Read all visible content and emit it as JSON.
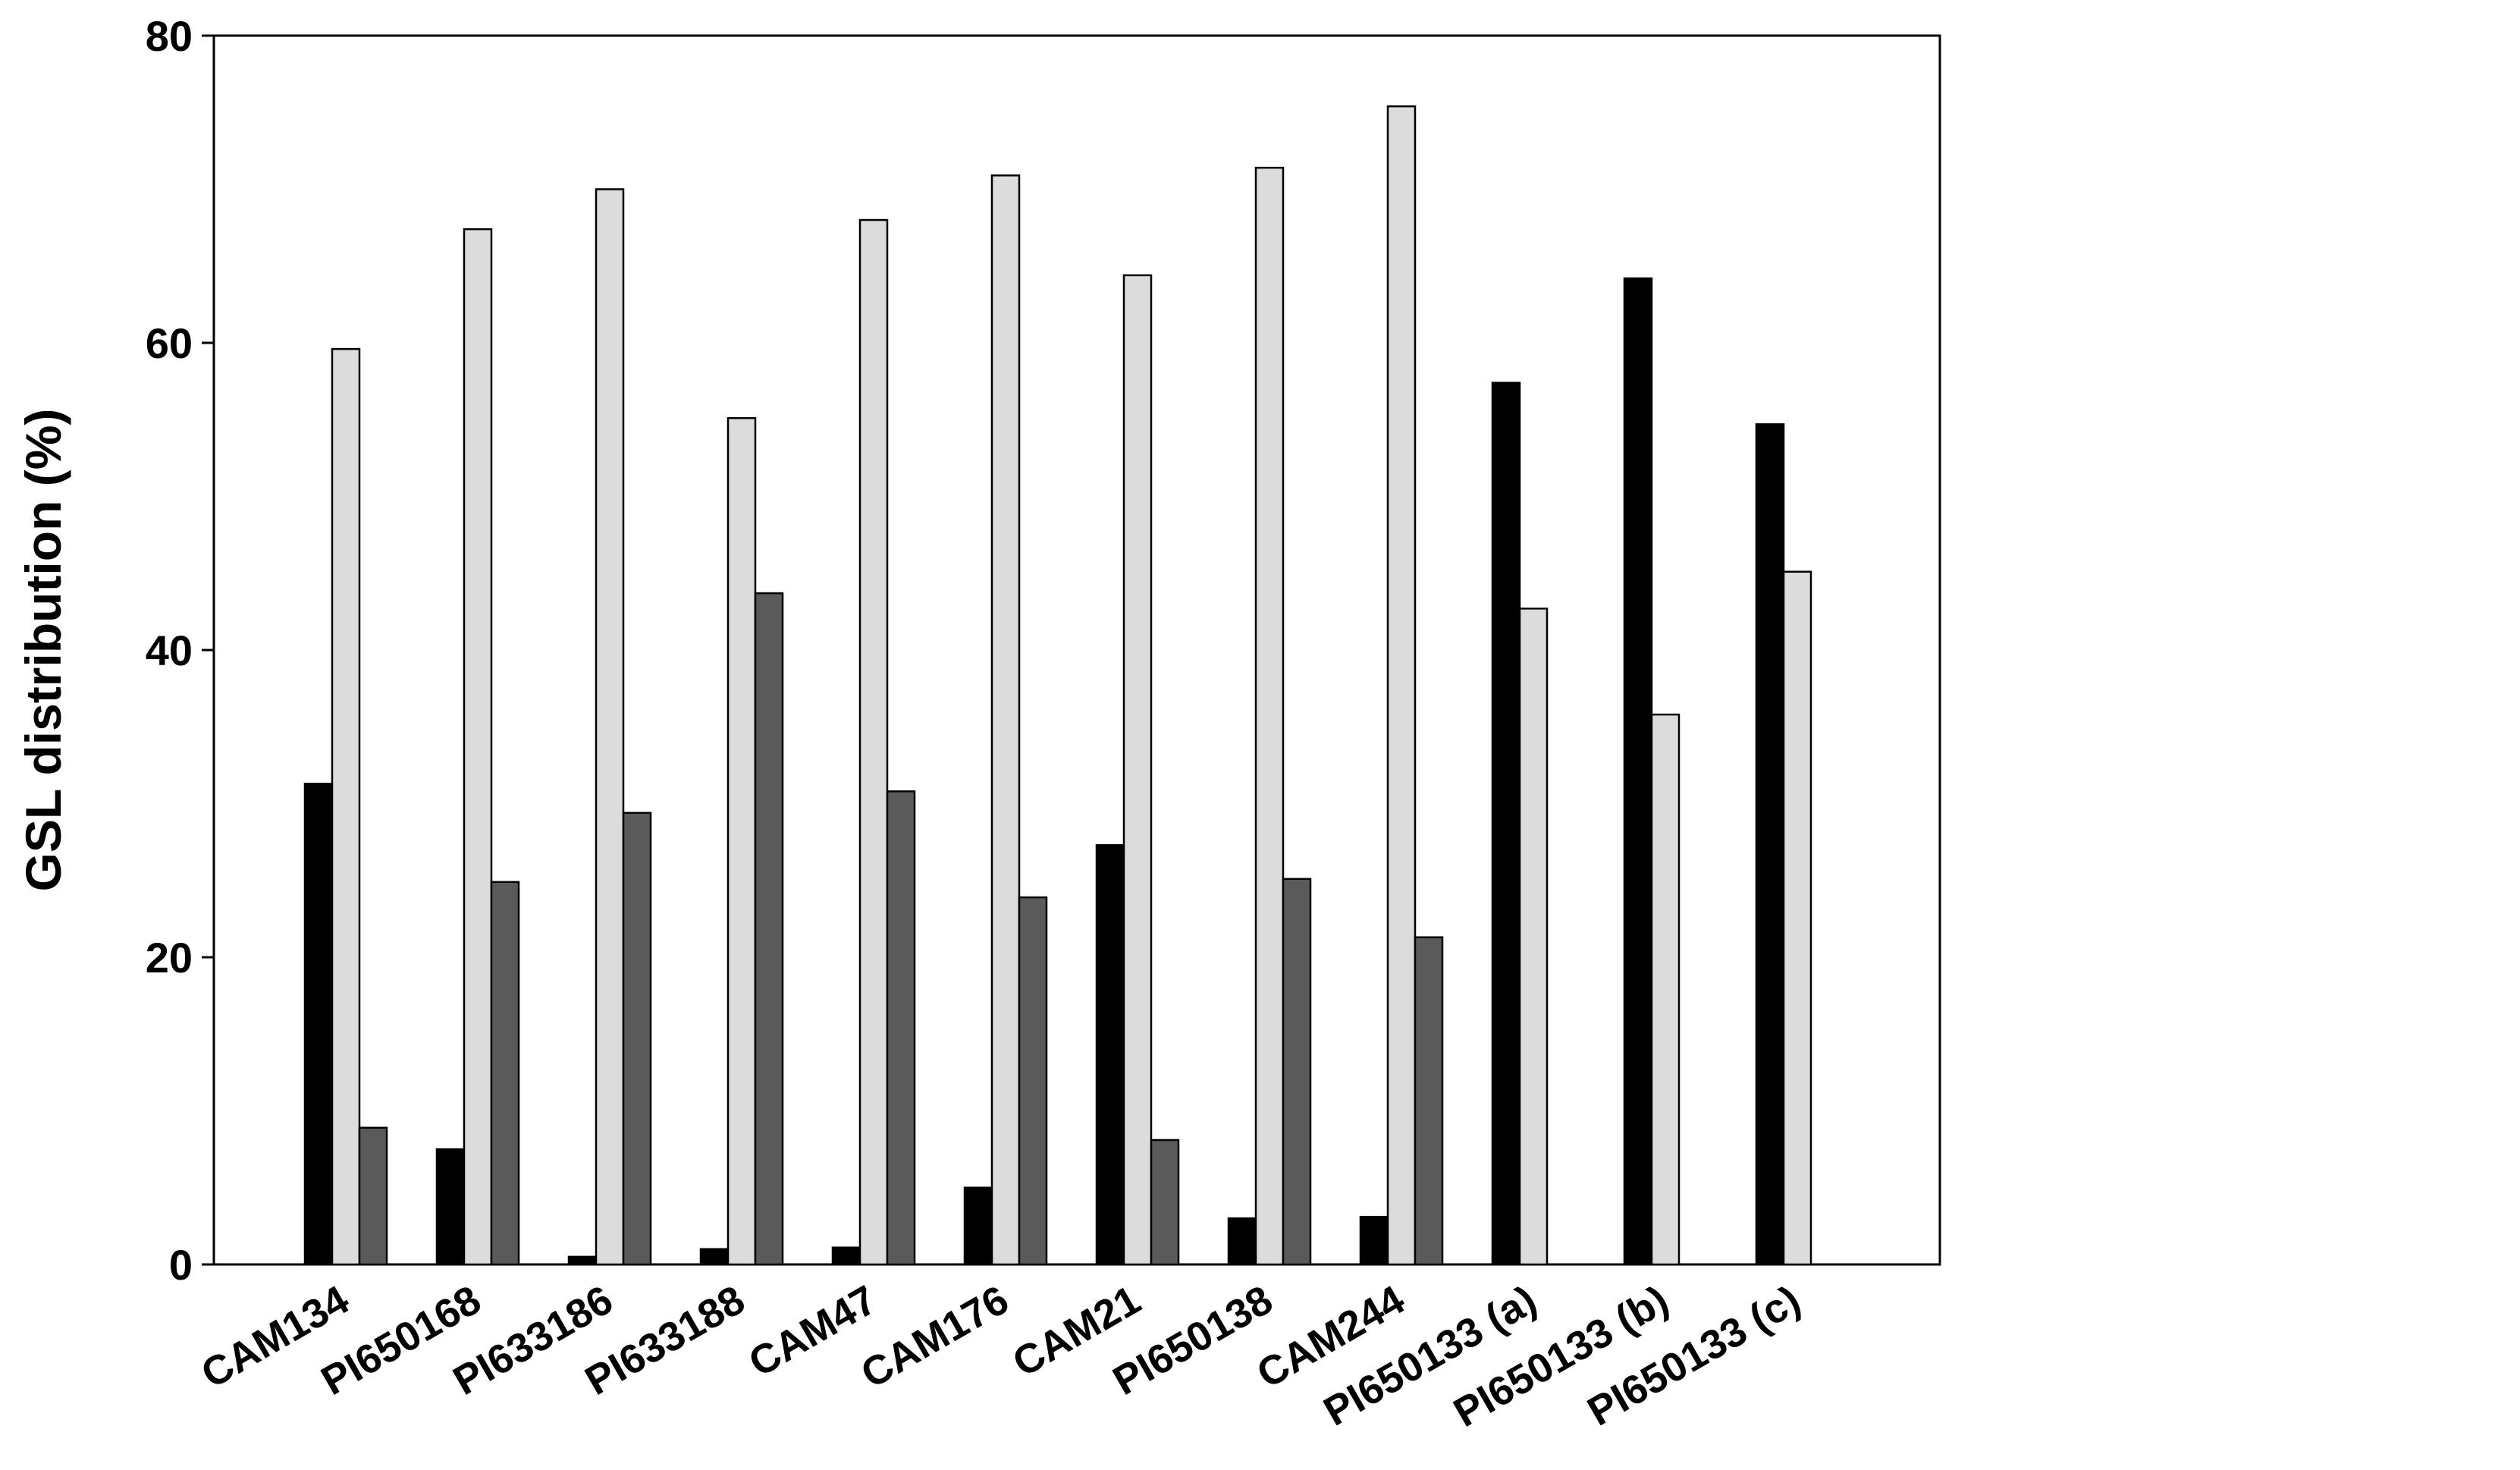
{
  "chart_data": {
    "type": "bar",
    "y_label": "GSL distribution (%)",
    "categories": [
      "CAM134",
      "PI650168",
      "PI633186",
      "PI633188",
      "CAM47",
      "CAM176",
      "CAM21",
      "PI650138",
      "CAM244",
      "PI650133 (a)",
      "PI650133 (b)",
      "PI650133 (c)"
    ],
    "series": [
      {
        "color": "#000000",
        "values": [
          31.3,
          7.5,
          0.5,
          1.0,
          1.1,
          5.0,
          27.3,
          3.0,
          3.1,
          57.4,
          64.2,
          54.7
        ]
      },
      {
        "color": "#dcdcdc",
        "values": [
          59.6,
          67.4,
          70.0,
          55.1,
          68.0,
          70.9,
          64.4,
          71.4,
          75.4,
          42.7,
          35.8,
          45.1
        ]
      },
      {
        "color": "#5a5a5a",
        "values": [
          8.9,
          24.9,
          29.4,
          43.7,
          30.8,
          23.9,
          8.1,
          25.1,
          21.3,
          null,
          null,
          null
        ]
      }
    ],
    "ylim": [
      0,
      80
    ],
    "yticks": [
      0,
      20,
      40,
      60,
      80
    ],
    "grid": false
  }
}
